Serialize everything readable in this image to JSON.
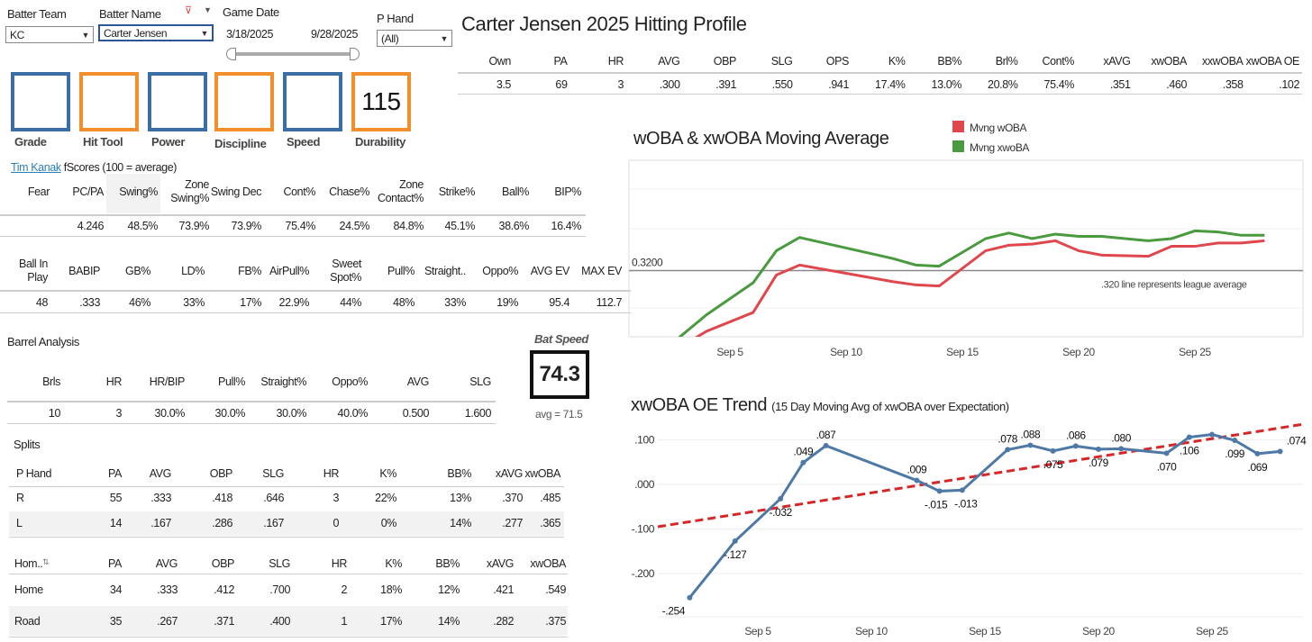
{
  "filters": {
    "batter_team": {
      "label": "Batter Team",
      "value": "KC"
    },
    "batter_name": {
      "label": "Batter Name",
      "value": "Carter Jensen"
    },
    "game_date": {
      "label": "Game Date",
      "start": "3/18/2025",
      "end": "9/28/2025"
    },
    "p_hand": {
      "label": "P Hand",
      "value": "(All)"
    }
  },
  "fscores": {
    "boxes": [
      {
        "label": "Grade",
        "value": ""
      },
      {
        "label": "Hit Tool",
        "value": ""
      },
      {
        "label": "Power",
        "value": ""
      },
      {
        "label": "Discipline",
        "value": ""
      },
      {
        "label": "Speed",
        "value": ""
      },
      {
        "label": "Durability",
        "value": "115"
      }
    ],
    "author_link": "Tim Kanak",
    "caption": "fScores (100 = average)"
  },
  "plate_discipline": {
    "headers": [
      "Fear",
      "PC/PA",
      "Swing%",
      "Zone\nSwing%",
      "Swing Dec",
      "Cont%",
      "Chase%",
      "Zone\nContact%",
      "Strike%",
      "Ball%",
      "BIP%"
    ],
    "values": [
      "",
      "4.246",
      "48.5%",
      "73.9%",
      "73.9%",
      "75.4%",
      "24.5%",
      "84.8%",
      "45.1%",
      "38.6%",
      "16.4%"
    ]
  },
  "batted_ball": {
    "headers": [
      "Ball In\nPlay",
      "BABIP",
      "GB%",
      "LD%",
      "FB%",
      "AirPull%",
      "Sweet\nSpot%",
      "Pull%",
      "Straight..",
      "Oppo%",
      "AVG EV",
      "MAX EV"
    ],
    "values": [
      "48",
      ".333",
      "46%",
      "33%",
      "17%",
      "22.9%",
      "44%",
      "48%",
      "33%",
      "19%",
      "95.4",
      "112.7"
    ]
  },
  "barrel": {
    "title": "Barrel Analysis",
    "headers": [
      "Brls",
      "HR",
      "HR/BIP",
      "Pull%",
      "Straight%",
      "Oppo%",
      "AVG",
      "SLG"
    ],
    "values": [
      "10",
      "3",
      "30.0%",
      "30.0%",
      "30.0%",
      "40.0%",
      "0.500",
      "1.600"
    ]
  },
  "bat_speed": {
    "label": "Bat Speed",
    "value": "74.3",
    "avg": "avg = 71.5"
  },
  "splits": {
    "title": "Splits",
    "hand": {
      "headers": [
        "P Hand",
        "PA",
        "AVG",
        "OBP",
        "SLG",
        "HR",
        "K%",
        "BB%",
        "xAVG",
        "xwOBA"
      ],
      "rows": [
        [
          "R",
          "55",
          ".333",
          ".418",
          ".646",
          "3",
          "22%",
          "13%",
          ".370",
          ".485"
        ],
        [
          "L",
          "14",
          ".167",
          ".286",
          ".167",
          "0",
          "0%",
          "14%",
          ".277",
          ".365"
        ]
      ]
    },
    "home": {
      "headers": [
        "Hom..",
        "PA",
        "AVG",
        "OBP",
        "SLG",
        "HR",
        "K%",
        "BB%",
        "xAVG",
        "xwOBA"
      ],
      "rows": [
        [
          "Home",
          "34",
          ".333",
          ".412",
          ".700",
          "2",
          "18%",
          "12%",
          ".421",
          ".549"
        ],
        [
          "Road",
          "35",
          ".267",
          ".371",
          ".400",
          "1",
          "17%",
          "14%",
          ".282",
          ".375"
        ]
      ]
    }
  },
  "profile": {
    "title": "Carter Jensen 2025 Hitting Profile",
    "headers": [
      "Own",
      "PA",
      "HR",
      "AVG",
      "OBP",
      "SLG",
      "OPS",
      "K%",
      "BB%",
      "Brl%",
      "Cont%",
      "xAVG",
      "xwOBA",
      "xxwOBA",
      "xwOBA OE"
    ],
    "values": [
      "3.5",
      "69",
      "3",
      ".300",
      ".391",
      ".550",
      ".941",
      "17.4%",
      "13.0%",
      "20.8%",
      "75.4%",
      ".351",
      ".460",
      ".358",
      ".102"
    ]
  },
  "colors": {
    "blue": "#3a6ea5",
    "orange": "#f28e2b",
    "red": "#e0474c",
    "green": "#4a9a3f",
    "line": "#4e79a7",
    "trend": "#d62728"
  },
  "chart_data": [
    {
      "type": "line",
      "title": "wOBA & xwOBA Moving Average",
      "legend": [
        "Mvng wOBA",
        "Mvng xwoBA"
      ],
      "legend_placement": "top-right",
      "xlabel": "",
      "ylabel": "",
      "x_ticks": [
        {
          "day": 5,
          "label": "Sep 5"
        },
        {
          "day": 10,
          "label": "Sep 10"
        },
        {
          "day": 15,
          "label": "Sep 15"
        },
        {
          "day": 20,
          "label": "Sep 20"
        },
        {
          "day": 25,
          "label": "Sep 25"
        }
      ],
      "ylim": [
        0.26,
        0.42
      ],
      "reference_line": {
        "value": 0.32,
        "label": "0.3200",
        "note": ".320 line represents league average"
      },
      "series": [
        {
          "name": "Mvng wOBA",
          "x": [
            2,
            4,
            6,
            7,
            8,
            12,
            13,
            14,
            16,
            17,
            18,
            19,
            20,
            21,
            23,
            24,
            25,
            26,
            27,
            28
          ],
          "y": [
            0.24,
            0.265,
            0.282,
            0.316,
            0.325,
            0.31,
            0.307,
            0.306,
            0.338,
            0.343,
            0.344,
            0.347,
            0.338,
            0.334,
            0.333,
            0.342,
            0.342,
            0.345,
            0.345,
            0.347
          ]
        },
        {
          "name": "Mvng xwoBA",
          "x": [
            2,
            4,
            6,
            7,
            8,
            12,
            13,
            14,
            16,
            17,
            18,
            19,
            20,
            21,
            23,
            24,
            25,
            26,
            27,
            28
          ],
          "y": [
            0.245,
            0.28,
            0.309,
            0.338,
            0.35,
            0.331,
            0.325,
            0.324,
            0.349,
            0.354,
            0.349,
            0.353,
            0.351,
            0.351,
            0.347,
            0.349,
            0.356,
            0.355,
            0.352,
            0.352
          ]
        }
      ]
    },
    {
      "type": "line",
      "title": "xwOBA OE Trend",
      "subtitle": "(15 Day Moving Avg of xwOBA over Expectation)",
      "y_ticks": [
        ".100",
        ".000",
        "-.100",
        "-.200"
      ],
      "y_tick_values": [
        0.1,
        0,
        -0.1,
        -0.2
      ],
      "x_ticks": [
        {
          "day": 5,
          "label": "Sep 5"
        },
        {
          "day": 10,
          "label": "Sep 10"
        },
        {
          "day": 15,
          "label": "Sep 15"
        },
        {
          "day": 20,
          "label": "Sep 20"
        },
        {
          "day": 25,
          "label": "Sep 25"
        }
      ],
      "ylim": [
        -0.27,
        0.14
      ],
      "series": [
        {
          "name": "xwOBA OE",
          "x": [
            2,
            4,
            6,
            7,
            8,
            12,
            13,
            14,
            16,
            17,
            18,
            19,
            20,
            21,
            23,
            24,
            25,
            26,
            27,
            28
          ],
          "y": [
            -0.254,
            -0.127,
            -0.032,
            0.049,
            0.087,
            0.009,
            -0.015,
            -0.013,
            0.078,
            0.088,
            0.075,
            0.086,
            0.079,
            0.08,
            0.07,
            0.106,
            0.112,
            0.099,
            0.069,
            0.074
          ],
          "labels": [
            "-.254",
            "-.127",
            "-.032",
            ".049",
            ".087",
            ".009",
            "-.015",
            "-.013",
            ".078",
            ".088",
            ".075",
            ".086",
            ".079",
            ".080",
            ".070",
            ".106",
            "",
            ".099",
            ".069",
            ".074"
          ]
        }
      ],
      "trend": {
        "start": -0.095,
        "end": 0.135
      }
    }
  ]
}
